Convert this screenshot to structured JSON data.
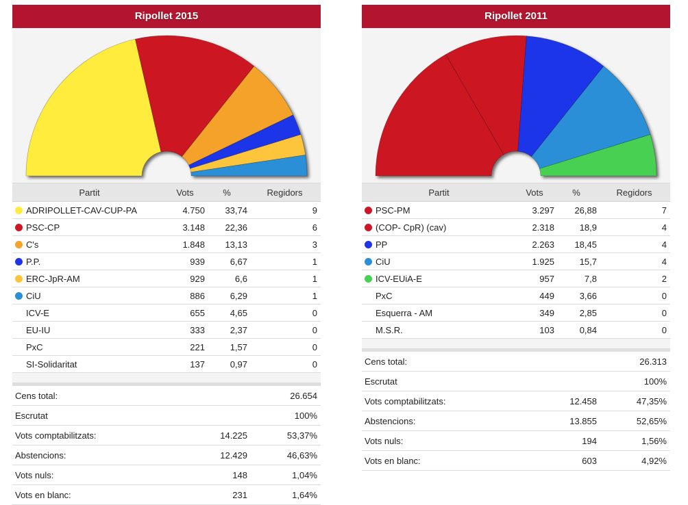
{
  "colors": {
    "title_bg": "#b3152f",
    "adripollet": "#ffec3d",
    "psc": "#cc1724",
    "cs": "#f5a229",
    "pp": "#1f34e8",
    "erc": "#fcc53a",
    "ciu": "#2a8fd6",
    "icv": "#47d051"
  },
  "panels": [
    {
      "title": "Ripollet 2015",
      "headers": {
        "party": "Partit",
        "votes": "Vots",
        "pct": "%",
        "seats": "Regidors"
      },
      "rows": [
        {
          "party": "ADRIPOLLET-CAV-CUP-PA",
          "votes": "4.750",
          "pct": "33,74",
          "seats": "9",
          "color": "#ffec3d"
        },
        {
          "party": "PSC-CP",
          "votes": "3.148",
          "pct": "22,36",
          "seats": "6",
          "color": "#cc1724"
        },
        {
          "party": "C's",
          "votes": "1.848",
          "pct": "13,13",
          "seats": "3",
          "color": "#f5a229"
        },
        {
          "party": "P.P.",
          "votes": "939",
          "pct": "6,67",
          "seats": "1",
          "color": "#1f34e8"
        },
        {
          "party": "ERC-JpR-AM",
          "votes": "929",
          "pct": "6,6",
          "seats": "1",
          "color": "#fcc53a"
        },
        {
          "party": "CiU",
          "votes": "886",
          "pct": "6,29",
          "seats": "1",
          "color": "#2a8fd6"
        },
        {
          "party": "ICV-E",
          "votes": "655",
          "pct": "4,65",
          "seats": "0",
          "color": ""
        },
        {
          "party": "EU-IU",
          "votes": "333",
          "pct": "2,37",
          "seats": "0",
          "color": ""
        },
        {
          "party": "PxC",
          "votes": "221",
          "pct": "1,57",
          "seats": "0",
          "color": ""
        },
        {
          "party": "SI-Solidaritat",
          "votes": "137",
          "pct": "0,97",
          "seats": "0",
          "color": ""
        }
      ],
      "summary": [
        {
          "label": "Cens total:",
          "value": "",
          "pct": "26.654"
        },
        {
          "label": "Escrutat",
          "value": "",
          "pct": "100%"
        },
        {
          "label": "Vots comptabilitzats:",
          "value": "14.225",
          "pct": "53,37%"
        },
        {
          "label": "Abstencions:",
          "value": "12.429",
          "pct": "46,63%"
        },
        {
          "label": "Vots nuls:",
          "value": "148",
          "pct": "1,04%"
        },
        {
          "label": "Vots en blanc:",
          "value": "231",
          "pct": "1,64%"
        }
      ]
    },
    {
      "title": "Ripollet 2011",
      "headers": {
        "party": "Partit",
        "votes": "Vots",
        "pct": "%",
        "seats": "Regidors"
      },
      "rows": [
        {
          "party": "PSC-PM",
          "votes": "3.297",
          "pct": "26,88",
          "seats": "7",
          "color": "#cc1724"
        },
        {
          "party": "(COP- CpR) (cav)",
          "votes": "2.318",
          "pct": "18,9",
          "seats": "4",
          "color": "#cc1724"
        },
        {
          "party": "PP",
          "votes": "2.263",
          "pct": "18,45",
          "seats": "4",
          "color": "#1f34e8"
        },
        {
          "party": "CiU",
          "votes": "1.925",
          "pct": "15,7",
          "seats": "4",
          "color": "#2a8fd6"
        },
        {
          "party": "ICV-EUiA-E",
          "votes": "957",
          "pct": "7,8",
          "seats": "2",
          "color": "#47d051"
        },
        {
          "party": "PxC",
          "votes": "449",
          "pct": "3,66",
          "seats": "0",
          "color": ""
        },
        {
          "party": "Esquerra - AM",
          "votes": "349",
          "pct": "2,85",
          "seats": "0",
          "color": ""
        },
        {
          "party": "M.S.R.",
          "votes": "103",
          "pct": "0,84",
          "seats": "0",
          "color": ""
        }
      ],
      "summary": [
        {
          "label": "Cens total:",
          "value": "",
          "pct": "26.313"
        },
        {
          "label": "Escrutat",
          "value": "",
          "pct": "100%"
        },
        {
          "label": "Vots comptabilitzats:",
          "value": "12.458",
          "pct": "47,35%"
        },
        {
          "label": "Abstencions:",
          "value": "13.855",
          "pct": "52,65%"
        },
        {
          "label": "Vots nuls:",
          "value": "194",
          "pct": "1,56%"
        },
        {
          "label": "Vots en blanc:",
          "value": "603",
          "pct": "4,92%"
        }
      ]
    }
  ],
  "chart_data": [
    {
      "type": "pie",
      "title": "Ripollet 2015",
      "categories": [
        "ADRIPOLLET-CAV-CUP-PA",
        "PSC-CP",
        "C's",
        "P.P.",
        "ERC-JpR-AM",
        "CiU"
      ],
      "values": [
        9,
        6,
        3,
        1,
        1,
        1
      ],
      "colors": [
        "#ffec3d",
        "#cc1724",
        "#f5a229",
        "#1f34e8",
        "#fcc53a",
        "#2a8fd6"
      ]
    },
    {
      "type": "pie",
      "title": "Ripollet 2011",
      "categories": [
        "PSC-PM",
        "(COP- CpR) (cav)",
        "PP",
        "CiU",
        "ICV-EUiA-E"
      ],
      "values": [
        7,
        4,
        4,
        4,
        2
      ],
      "colors": [
        "#cc1724",
        "#cc1724",
        "#1f34e8",
        "#2a8fd6",
        "#47d051"
      ]
    }
  ]
}
